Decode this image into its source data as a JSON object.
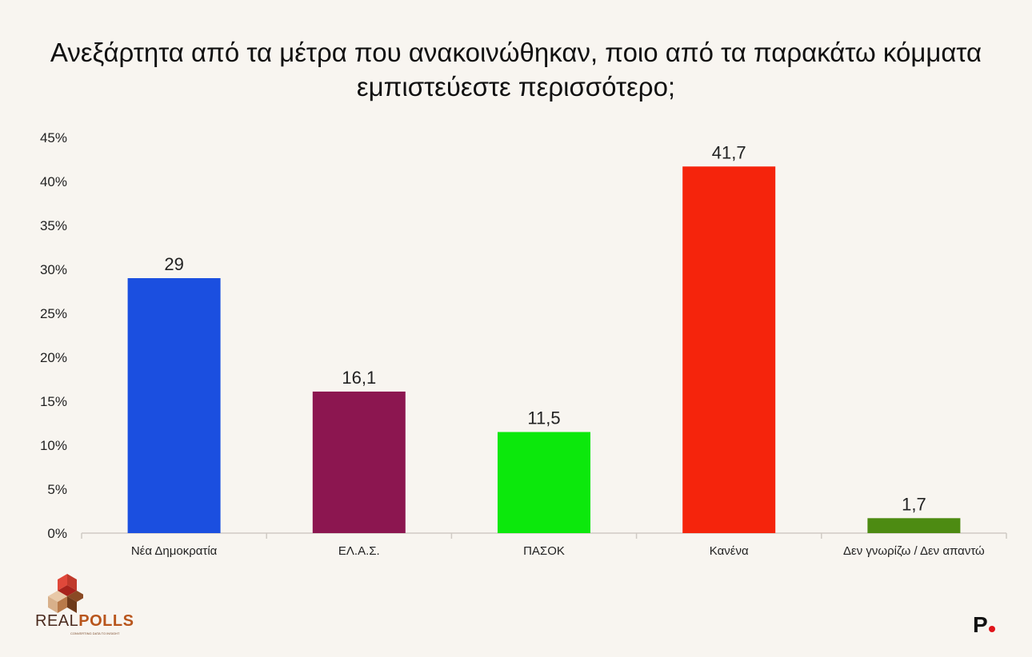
{
  "title_line1": "Ανεξάρτητα από τα μέτρα που ανακοινώθηκαν, ποιο από τα παρακάτω κόμματα",
  "title_line2": "εμπιστεύεστε περισσότερο;",
  "chart_data": {
    "type": "bar",
    "title": "Ανεξάρτητα από τα μέτρα που ανακοινώθηκαν, ποιο από τα παρακάτω κόμματα εμπιστεύεστε περισσότερο;",
    "categories": [
      "Νέα Δημοκρατία",
      "ΕΛ.Α.Σ.",
      "ΠΑΣΟΚ",
      "Κανένα",
      "Δεν γνωρίζω / Δεν απαντώ"
    ],
    "values": [
      29,
      16.1,
      11.5,
      41.7,
      1.7
    ],
    "value_labels": [
      "29",
      "16,1",
      "11,5",
      "41,7",
      "1,7"
    ],
    "colors": [
      "#1b4fe0",
      "#8c1650",
      "#0ce80c",
      "#f5240c",
      "#4d8b12"
    ],
    "ylim": [
      0,
      45
    ],
    "yticks": [
      "0%",
      "5%",
      "10%",
      "15%",
      "20%",
      "25%",
      "30%",
      "35%",
      "40%",
      "45%"
    ],
    "xlabel": "",
    "ylabel": "",
    "grid": false,
    "legend": "none"
  },
  "logos": {
    "left_brand_part1": "REAL",
    "left_brand_part2": "POLLS",
    "left_tagline": "CONVERTING DATA TO INSIGHT",
    "right_mark": "P"
  }
}
